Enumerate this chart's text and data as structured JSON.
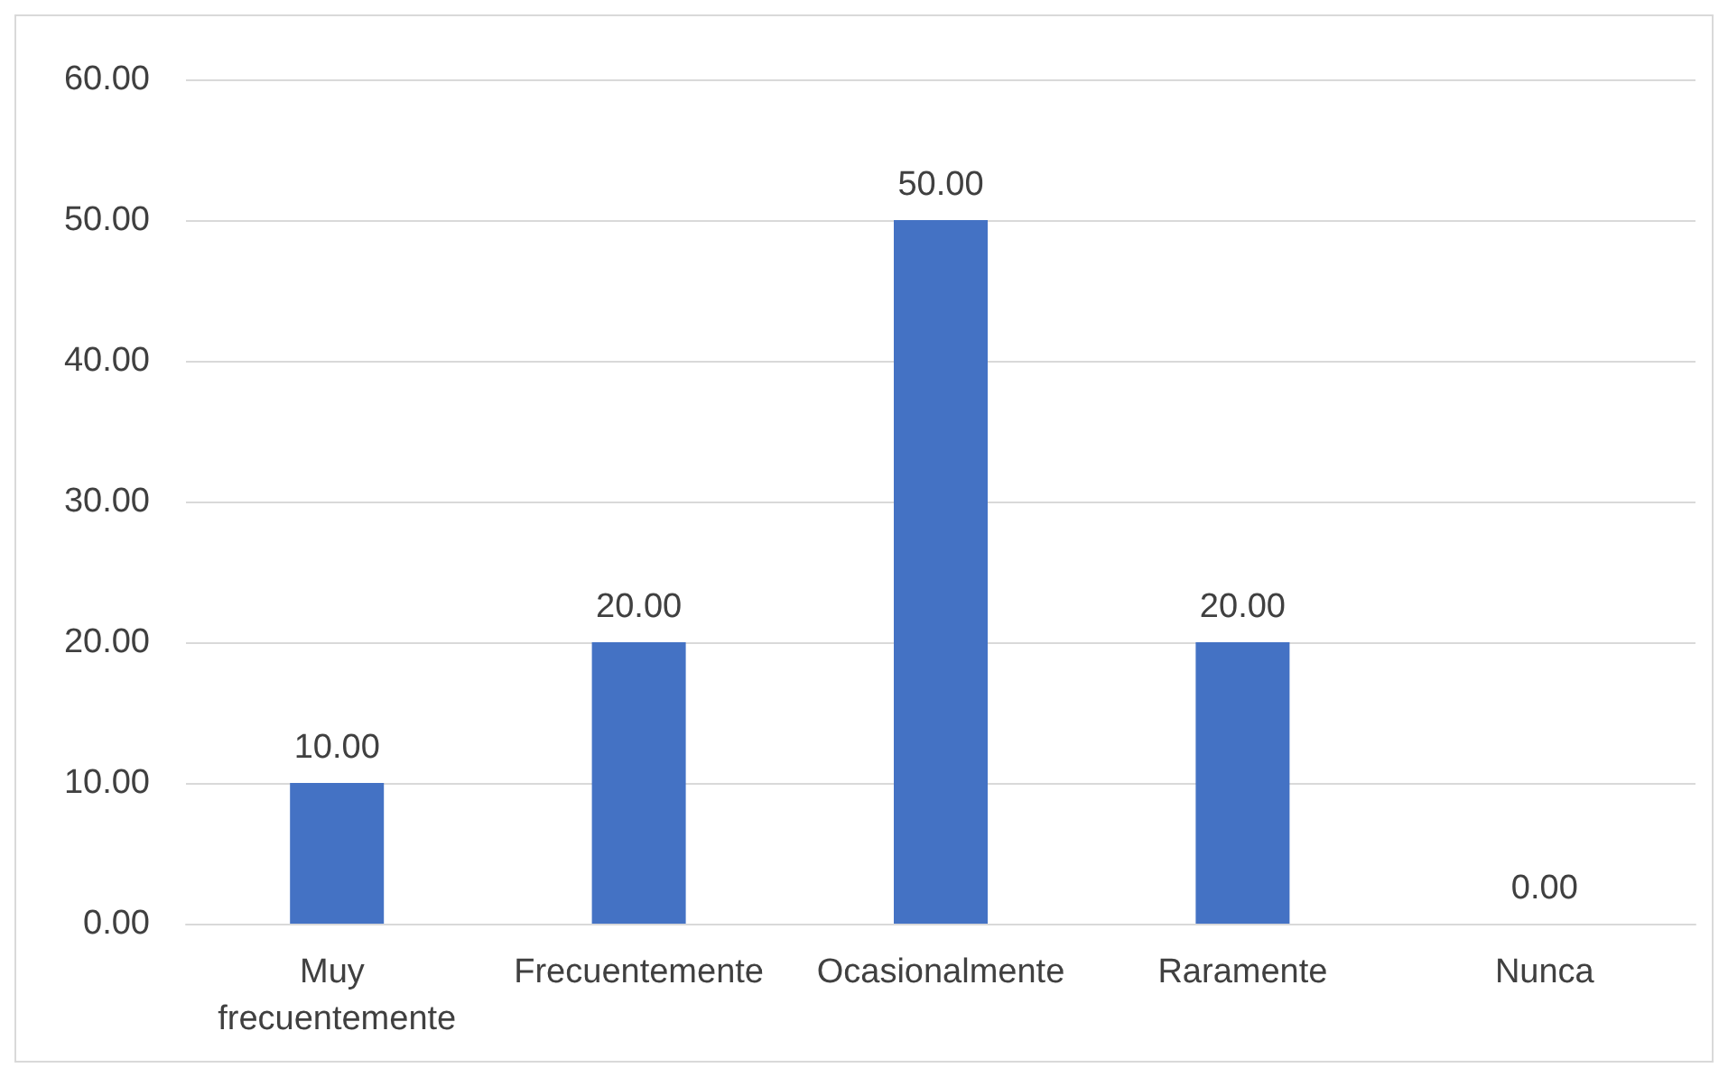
{
  "chart_data": {
    "type": "bar",
    "categories": [
      "Muy frecuentemente",
      "Frecuentemente",
      "Ocasionalmente",
      "Raramente",
      "Nunca"
    ],
    "values": [
      10,
      20,
      50,
      20,
      0
    ],
    "value_labels": [
      "10.00",
      "20.00",
      "50.00",
      "20.00",
      "0.00"
    ],
    "color": "#4472c4",
    "ylim": [
      0,
      60
    ],
    "yticks": [
      {
        "value": 0,
        "label": "0.00"
      },
      {
        "value": 10,
        "label": "10.00"
      },
      {
        "value": 20,
        "label": "20.00"
      },
      {
        "value": 30,
        "label": "30.00"
      },
      {
        "value": 40,
        "label": "40.00"
      },
      {
        "value": 50,
        "label": "50.00"
      },
      {
        "value": 60,
        "label": "60.00"
      }
    ],
    "grid": "y"
  }
}
